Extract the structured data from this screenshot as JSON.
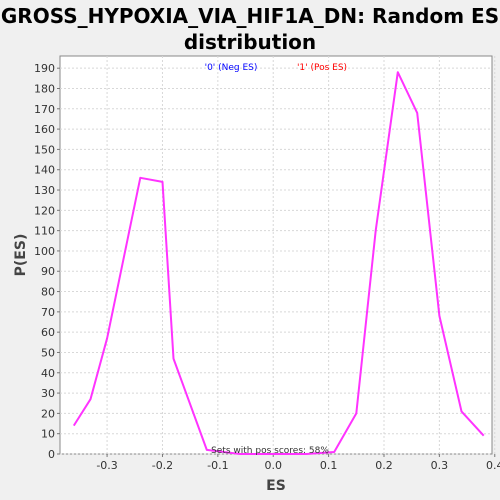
{
  "chart_data": {
    "type": "line",
    "title_line1": "GROSS_HYPOXIA_VIA_HIF1A_DN: Random ES",
    "title_line2": "distribution",
    "xlabel": "ES",
    "ylabel": "P(ES)",
    "xlim": [
      -0.385,
      0.395
    ],
    "ylim": [
      0,
      196
    ],
    "x_ticks": [
      -0.3,
      -0.2,
      -0.1,
      0.0,
      0.1,
      0.2,
      0.3,
      0.4
    ],
    "x_tick_labels": [
      "-0.3",
      "-0.2",
      "-0.1",
      "0.0",
      "0.1",
      "0.2",
      "0.3",
      "0.4"
    ],
    "y_ticks": [
      0,
      10,
      20,
      30,
      40,
      50,
      60,
      70,
      80,
      90,
      100,
      110,
      120,
      130,
      140,
      150,
      160,
      170,
      180,
      190
    ],
    "grid": true,
    "legend": [
      {
        "label": "'0' (Neg ES)",
        "color": "#0000ff"
      },
      {
        "label": "'1' (Pos ES)",
        "color": "#ff0000"
      }
    ],
    "annotation": "Sets with pos scores: 58%",
    "series": [
      {
        "color": "#ff33ff",
        "x": [
          -0.36,
          -0.33,
          -0.3,
          -0.24,
          -0.2,
          -0.18,
          -0.12,
          -0.06,
          0.0,
          0.06,
          0.11,
          0.15,
          0.185,
          0.225,
          0.26,
          0.3,
          0.34,
          0.38
        ],
        "y": [
          14,
          27,
          57,
          136,
          134,
          47,
          2,
          0,
          0,
          0,
          1,
          20,
          110,
          188,
          168,
          68,
          21,
          9
        ]
      }
    ]
  }
}
